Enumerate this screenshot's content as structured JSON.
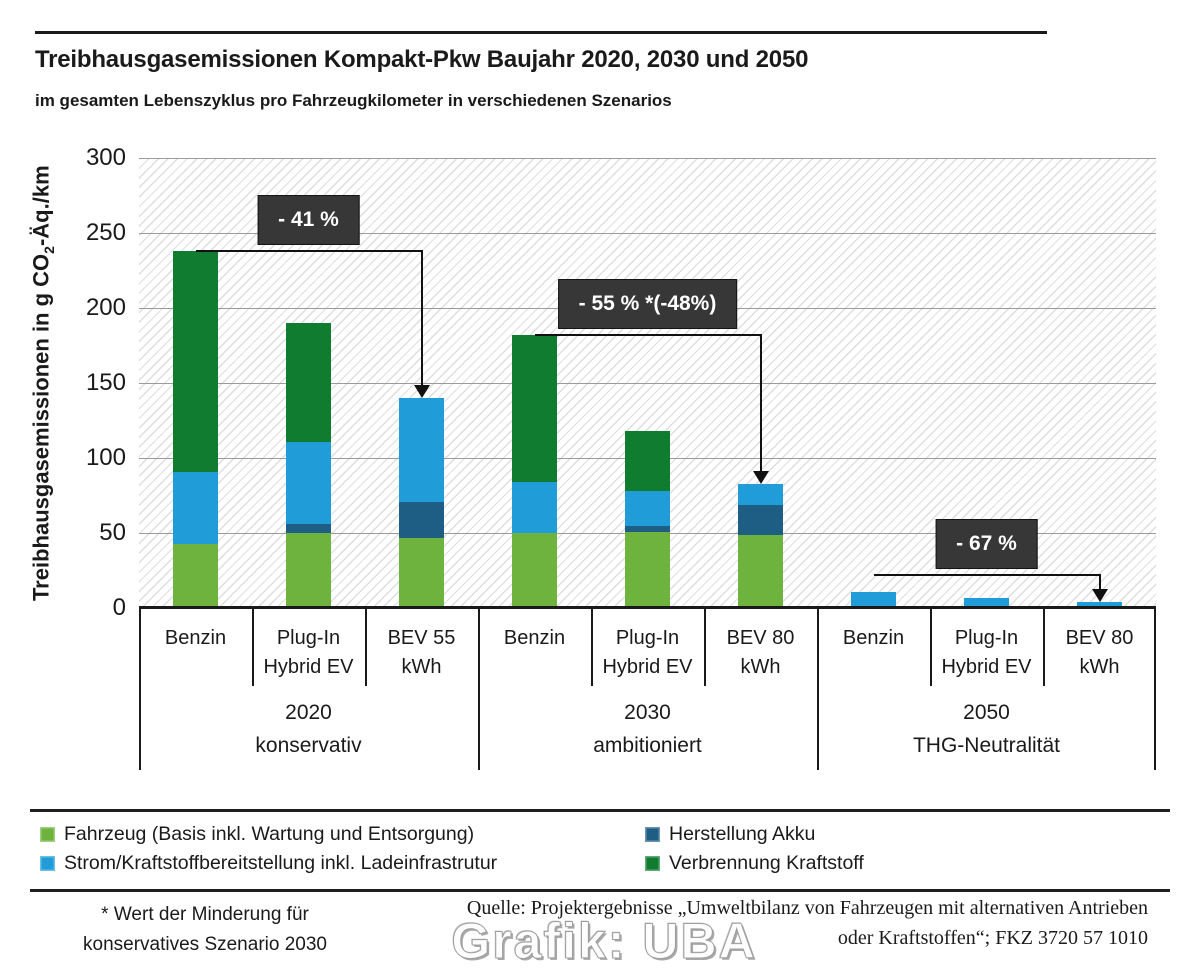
{
  "header": {
    "title": "Treibhausgasemissionen Kompakt-Pkw Baujahr 2020, 2030 und 2050",
    "subtitle": "im gesamten Lebenszyklus pro Fahrzeugkilometer in verschiedenen Szenarios"
  },
  "chart_data": {
    "type": "bar",
    "stacked": true,
    "title": "Treibhausgasemissionen Kompakt-Pkw Baujahr 2020, 2030 und 2050",
    "subtitle": "im gesamten Lebenszyklus pro Fahrzeugkilometer in verschiedenen Szenarios",
    "ylabel": {
      "pre": "Treibhausgasemissionen in g CO",
      "sub": "2",
      "post": "-Äq./km"
    },
    "ylim": [
      0,
      300
    ],
    "yticks": [
      300,
      250,
      200,
      150,
      100,
      50,
      0
    ],
    "grid": true,
    "hatch_background": true,
    "unit": "g CO2-Äq./km",
    "series": [
      {
        "key": "fahrzeug",
        "label": "Fahrzeug (Basis inkl. Wartung und Entsorgung)",
        "color": "#6db33d"
      },
      {
        "key": "akku",
        "label": "Herstellung Akku",
        "color": "#1e5e85"
      },
      {
        "key": "strom",
        "label": "Strom/Kraftstoffbereitstellung inkl. Ladeinfrastrutur",
        "color": "#209dd8"
      },
      {
        "key": "verbrennung",
        "label": "Verbrennung Kraftstoff",
        "color": "#107c30"
      }
    ],
    "stack_order": [
      "fahrzeug",
      "akku",
      "strom",
      "verbrennung"
    ],
    "groups": [
      {
        "label_lines": [
          "2020",
          "konservativ"
        ],
        "bars": [
          {
            "label_lines": [
              "Benzin"
            ],
            "values": {
              "fahrzeug": 43,
              "akku": 0,
              "strom": 48,
              "verbrennung": 147
            },
            "total": 238
          },
          {
            "label_lines": [
              "Plug-In",
              "Hybrid EV"
            ],
            "values": {
              "fahrzeug": 50,
              "akku": 6,
              "strom": 55,
              "verbrennung": 79
            },
            "total": 190
          },
          {
            "label_lines": [
              "BEV 55",
              "kWh"
            ],
            "values": {
              "fahrzeug": 47,
              "akku": 24,
              "strom": 69,
              "verbrennung": 0
            },
            "total": 140
          }
        ]
      },
      {
        "label_lines": [
          "2030",
          "ambitioniert"
        ],
        "bars": [
          {
            "label_lines": [
              "Benzin"
            ],
            "values": {
              "fahrzeug": 50,
              "akku": 0,
              "strom": 34,
              "verbrennung": 98
            },
            "total": 182
          },
          {
            "label_lines": [
              "Plug-In",
              "Hybrid EV"
            ],
            "values": {
              "fahrzeug": 51,
              "akku": 4,
              "strom": 23,
              "verbrennung": 40
            },
            "total": 118
          },
          {
            "label_lines": [
              "BEV 80",
              "kWh"
            ],
            "values": {
              "fahrzeug": 49,
              "akku": 20,
              "strom": 14,
              "verbrennung": 0
            },
            "total": 83
          }
        ]
      },
      {
        "label_lines": [
          "2050",
          "THG-Neutralität"
        ],
        "bars": [
          {
            "label_lines": [
              "Benzin"
            ],
            "values": {
              "fahrzeug": 0,
              "akku": 0,
              "strom": 11,
              "verbrennung": 0
            },
            "total": 11
          },
          {
            "label_lines": [
              "Plug-In",
              "Hybrid EV"
            ],
            "values": {
              "fahrzeug": 0,
              "akku": 0,
              "strom": 7,
              "verbrennung": 0
            },
            "total": 7
          },
          {
            "label_lines": [
              "BEV 80",
              "kWh"
            ],
            "values": {
              "fahrzeug": 0,
              "akku": 0,
              "strom": 4,
              "verbrennung": 0
            },
            "total": 4
          }
        ]
      }
    ],
    "annotations": [
      {
        "label": "- 41 %",
        "from_bar": 0,
        "to_bar": 2,
        "line_y": 238
      },
      {
        "label": "- 55 % *(-48%)",
        "from_bar": 3,
        "to_bar": 5,
        "line_y": 182
      },
      {
        "label": "- 67 %",
        "from_bar": 6,
        "to_bar": 8,
        "line_y": 22
      }
    ],
    "annotation_box_color": "#373737",
    "gridline_color": "#9b9b9b"
  },
  "footer": {
    "footnote_lines": [
      "* Wert der Minderung für",
      "konservatives Szenario 2030"
    ],
    "source_lines": [
      "Quelle: Projektergebnisse „Umweltbilanz von Fahrzeugen mit alternativen Antrieben",
      "oder Kraftstoffen“; FKZ 3720 57 1010"
    ],
    "watermark": "Grafik: UBA"
  }
}
